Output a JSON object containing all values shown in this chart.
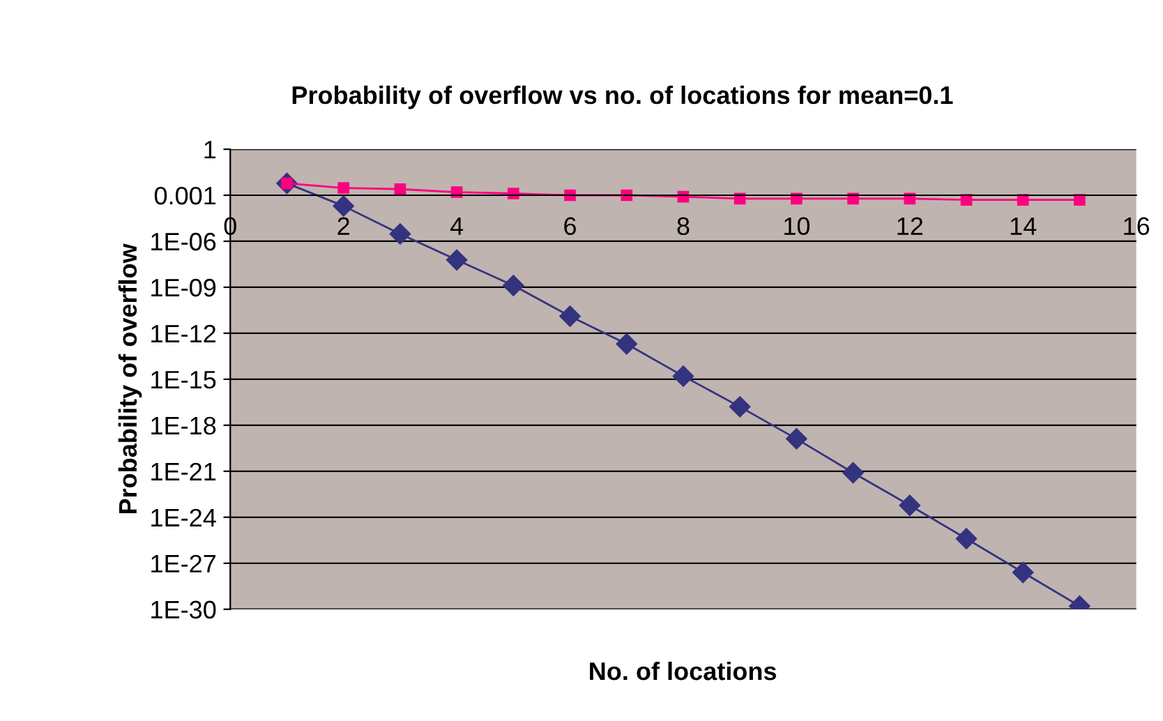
{
  "chart_data": {
    "type": "line",
    "title": "Probability of overflow vs no. of locations for mean=0.1",
    "xlabel": "No. of locations",
    "ylabel": "Probability of overflow",
    "x": [
      1,
      2,
      3,
      4,
      5,
      6,
      7,
      8,
      9,
      10,
      11,
      12,
      13,
      14,
      15
    ],
    "series": [
      {
        "color": "#333380",
        "marker": "diamond",
        "values": [
          0.006,
          0.0002,
          3e-06,
          6e-08,
          1.3e-09,
          1.3e-11,
          2e-13,
          1.6e-15,
          1.6e-17,
          1.3e-19,
          8e-22,
          6e-24,
          4e-26,
          2.5e-28,
          1.6e-30
        ]
      },
      {
        "color": "#ff0080",
        "marker": "square",
        "values": [
          0.006,
          0.003,
          0.0025,
          0.0016,
          0.0013,
          0.001,
          0.001,
          0.0008,
          0.0006,
          0.0006,
          0.0006,
          0.0006,
          0.0005,
          0.0005,
          0.0005
        ]
      }
    ],
    "log": "y",
    "xlim": [
      0,
      16
    ],
    "xticks": [
      0,
      2,
      4,
      6,
      8,
      10,
      12,
      14,
      16
    ],
    "ylim": [
      1e-30,
      1
    ],
    "yticks": [
      {
        "value": 1e-30,
        "label": "1E-30"
      },
      {
        "value": 1e-27,
        "label": "1E-27"
      },
      {
        "value": 1e-24,
        "label": "1E-24"
      },
      {
        "value": 1e-21,
        "label": "1E-21"
      },
      {
        "value": 1e-18,
        "label": "1E-18"
      },
      {
        "value": 1e-15,
        "label": "1E-15"
      },
      {
        "value": 1e-12,
        "label": "1E-12"
      },
      {
        "value": 1e-09,
        "label": "1E-09"
      },
      {
        "value": 1e-06,
        "label": "1E-06"
      },
      0.001,
      1
    ],
    "grid": "y",
    "line_style": "solid"
  }
}
